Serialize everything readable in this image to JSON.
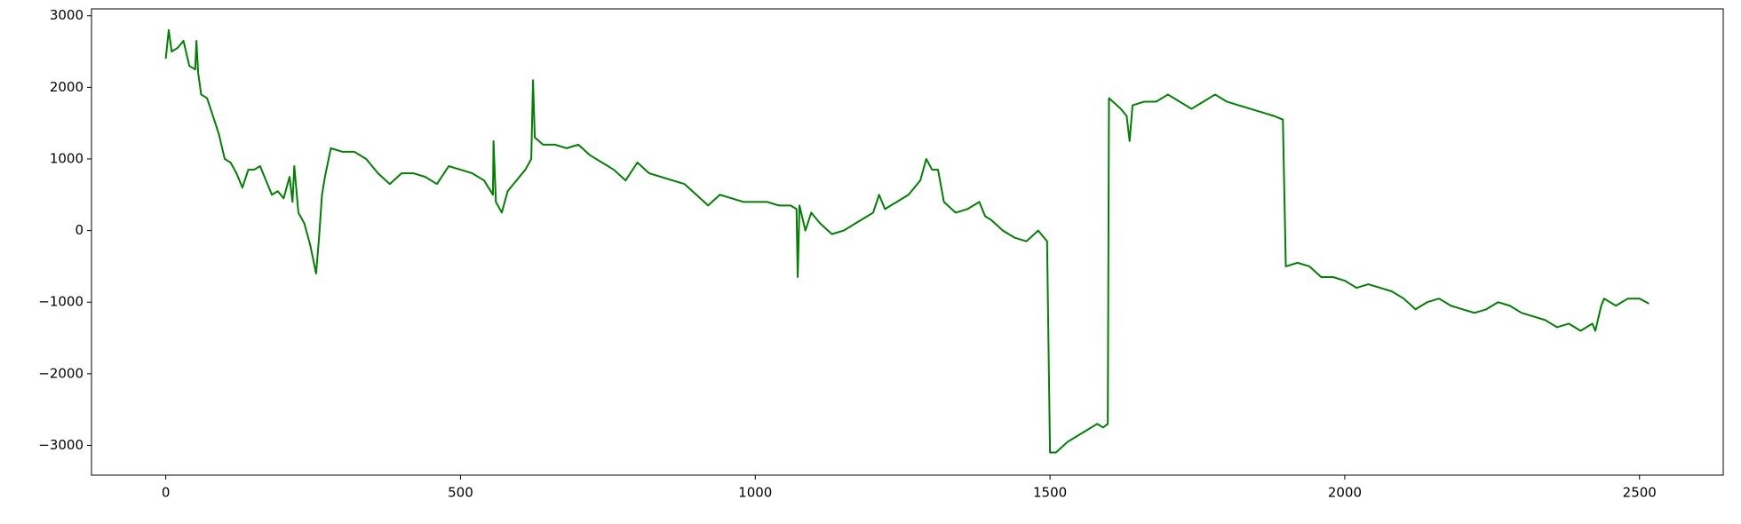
{
  "chart_data": {
    "type": "line",
    "color": "#008000",
    "x": [
      0,
      5,
      10,
      20,
      30,
      40,
      50,
      52,
      55,
      60,
      70,
      80,
      90,
      100,
      110,
      120,
      130,
      140,
      150,
      160,
      170,
      180,
      190,
      200,
      210,
      215,
      218,
      225,
      235,
      245,
      250,
      255,
      260,
      265,
      270,
      280,
      300,
      320,
      340,
      360,
      380,
      400,
      420,
      440,
      460,
      480,
      500,
      520,
      540,
      555,
      556,
      560,
      570,
      580,
      600,
      610,
      620,
      623,
      626,
      640,
      660,
      680,
      700,
      720,
      740,
      760,
      780,
      800,
      820,
      840,
      860,
      880,
      900,
      920,
      940,
      960,
      980,
      1000,
      1020,
      1040,
      1060,
      1070,
      1072,
      1075,
      1085,
      1095,
      1110,
      1130,
      1150,
      1170,
      1190,
      1200,
      1210,
      1220,
      1240,
      1260,
      1280,
      1290,
      1300,
      1310,
      1320,
      1340,
      1360,
      1380,
      1390,
      1400,
      1420,
      1440,
      1460,
      1480,
      1490,
      1495,
      1500,
      1510,
      1530,
      1550,
      1570,
      1580,
      1590,
      1598,
      1600,
      1620,
      1630,
      1635,
      1640,
      1660,
      1680,
      1700,
      1720,
      1740,
      1760,
      1780,
      1800,
      1820,
      1840,
      1860,
      1880,
      1895,
      1900,
      1920,
      1940,
      1960,
      1980,
      2000,
      2020,
      2040,
      2060,
      2080,
      2100,
      2120,
      2140,
      2160,
      2180,
      2200,
      2220,
      2240,
      2260,
      2280,
      2300,
      2320,
      2340,
      2360,
      2380,
      2400,
      2420,
      2425,
      2435,
      2440,
      2460,
      2480,
      2500,
      2516
    ],
    "values": [
      2400,
      2800,
      2500,
      2550,
      2650,
      2300,
      2250,
      2650,
      2200,
      1900,
      1850,
      1600,
      1350,
      1000,
      950,
      800,
      600,
      850,
      850,
      900,
      700,
      500,
      550,
      450,
      750,
      400,
      900,
      250,
      100,
      -200,
      -400,
      -600,
      -100,
      500,
      750,
      1150,
      1100,
      1100,
      1000,
      800,
      650,
      800,
      800,
      750,
      650,
      900,
      850,
      800,
      700,
      500,
      1250,
      400,
      250,
      550,
      750,
      850,
      1000,
      2100,
      1300,
      1200,
      1200,
      1150,
      1200,
      1050,
      950,
      850,
      700,
      950,
      800,
      750,
      700,
      650,
      500,
      350,
      500,
      450,
      400,
      400,
      400,
      350,
      350,
      300,
      -650,
      350,
      0,
      250,
      100,
      -50,
      0,
      100,
      200,
      250,
      500,
      300,
      400,
      500,
      700,
      1000,
      850,
      850,
      400,
      250,
      300,
      400,
      200,
      150,
      0,
      -100,
      -150,
      0,
      -100,
      -150,
      -3100,
      -3100,
      -2950,
      -2850,
      -2750,
      -2700,
      -2750,
      -2700,
      1850,
      1700,
      1600,
      1250,
      1750,
      1800,
      1800,
      1900,
      1800,
      1700,
      1800,
      1900,
      1800,
      1750,
      1700,
      1650,
      1600,
      1550,
      -500,
      -450,
      -500,
      -650,
      -650,
      -700,
      -800,
      -750,
      -800,
      -850,
      -950,
      -1100,
      -1000,
      -950,
      -1050,
      -1100,
      -1150,
      -1100,
      -1000,
      -1050,
      -1150,
      -1200,
      -1250,
      -1350,
      -1300,
      -1400,
      -1300,
      -1400,
      -1050,
      -950,
      -1050,
      -950,
      -950,
      -1020
    ],
    "xlim": [
      -126,
      2642
    ],
    "ylim": [
      -3416,
      3096
    ],
    "xticks": [
      0,
      500,
      1000,
      1500,
      2000,
      2500
    ],
    "yticks": [
      3000,
      2000,
      1000,
      0,
      {
        "value": -1000,
        "label": "−1000"
      },
      {
        "value": -2000,
        "label": "−2000"
      },
      {
        "value": -3000,
        "label": "−3000"
      }
    ]
  }
}
